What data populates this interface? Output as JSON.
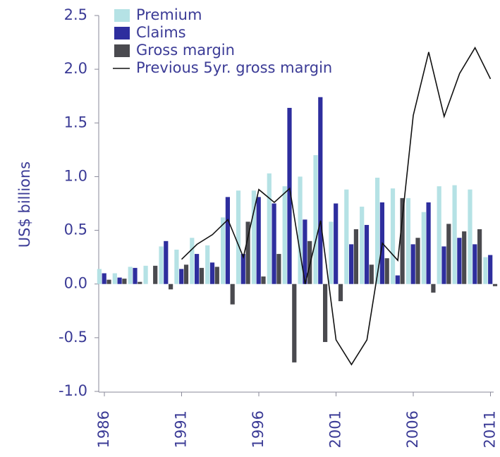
{
  "chart_data": {
    "type": "bar",
    "y_label": "US$ billions",
    "categories": [
      "1986",
      null,
      null,
      null,
      null,
      "1991",
      null,
      null,
      null,
      null,
      "1996",
      null,
      null,
      null,
      null,
      "2001",
      null,
      null,
      null,
      null,
      "2006",
      null,
      null,
      null,
      null,
      "2011"
    ],
    "series": [
      {
        "name": "Premium",
        "color": "#b5e2e5",
        "values": [
          0.14,
          0.1,
          0.16,
          0.17,
          0.35,
          0.32,
          0.43,
          0.36,
          0.62,
          0.87,
          0.87,
          1.03,
          0.91,
          1.0,
          1.2,
          0.58,
          0.88,
          0.72,
          0.99,
          0.89,
          0.8,
          0.67,
          0.91,
          0.92,
          0.88,
          0.25
        ]
      },
      {
        "name": "Claims",
        "color": "#2e2e9e",
        "values": [
          0.1,
          0.06,
          0.15,
          0.0,
          0.4,
          0.14,
          0.28,
          0.2,
          0.81,
          0.28,
          0.81,
          0.75,
          1.64,
          0.6,
          1.74,
          0.75,
          0.37,
          0.55,
          0.76,
          0.08,
          0.37,
          0.76,
          0.35,
          0.43,
          0.37,
          0.27
        ]
      },
      {
        "name": "Gross margin",
        "color": "#4a4a4f",
        "values": [
          0.04,
          0.05,
          0.02,
          0.17,
          -0.05,
          0.18,
          0.15,
          0.16,
          -0.19,
          0.58,
          0.07,
          0.28,
          -0.73,
          0.4,
          -0.54,
          -0.16,
          0.51,
          0.18,
          0.24,
          0.8,
          0.43,
          -0.08,
          0.56,
          0.49,
          0.51,
          -0.02
        ]
      },
      {
        "name": "Previous 5yr. gross margin",
        "type": "line",
        "color": "#111111",
        "values": [
          null,
          null,
          null,
          null,
          null,
          0.23,
          0.37,
          0.46,
          0.6,
          0.25,
          0.88,
          0.76,
          0.89,
          0.0,
          0.59,
          -0.52,
          -0.75,
          -0.52,
          0.38,
          0.22,
          1.57,
          2.16,
          1.56,
          1.96,
          2.2,
          1.91
        ]
      }
    ],
    "ylim": [
      -1.0,
      2.5
    ],
    "yticks": [
      {
        "value": -1,
        "label": "-1.0"
      },
      -0.5,
      {
        "value": 0,
        "label": "0.0"
      },
      0.5,
      {
        "value": 1,
        "label": "1.0"
      },
      1.5,
      {
        "value": 2,
        "label": "2.0"
      },
      2.5
    ],
    "legend": "top-left"
  }
}
